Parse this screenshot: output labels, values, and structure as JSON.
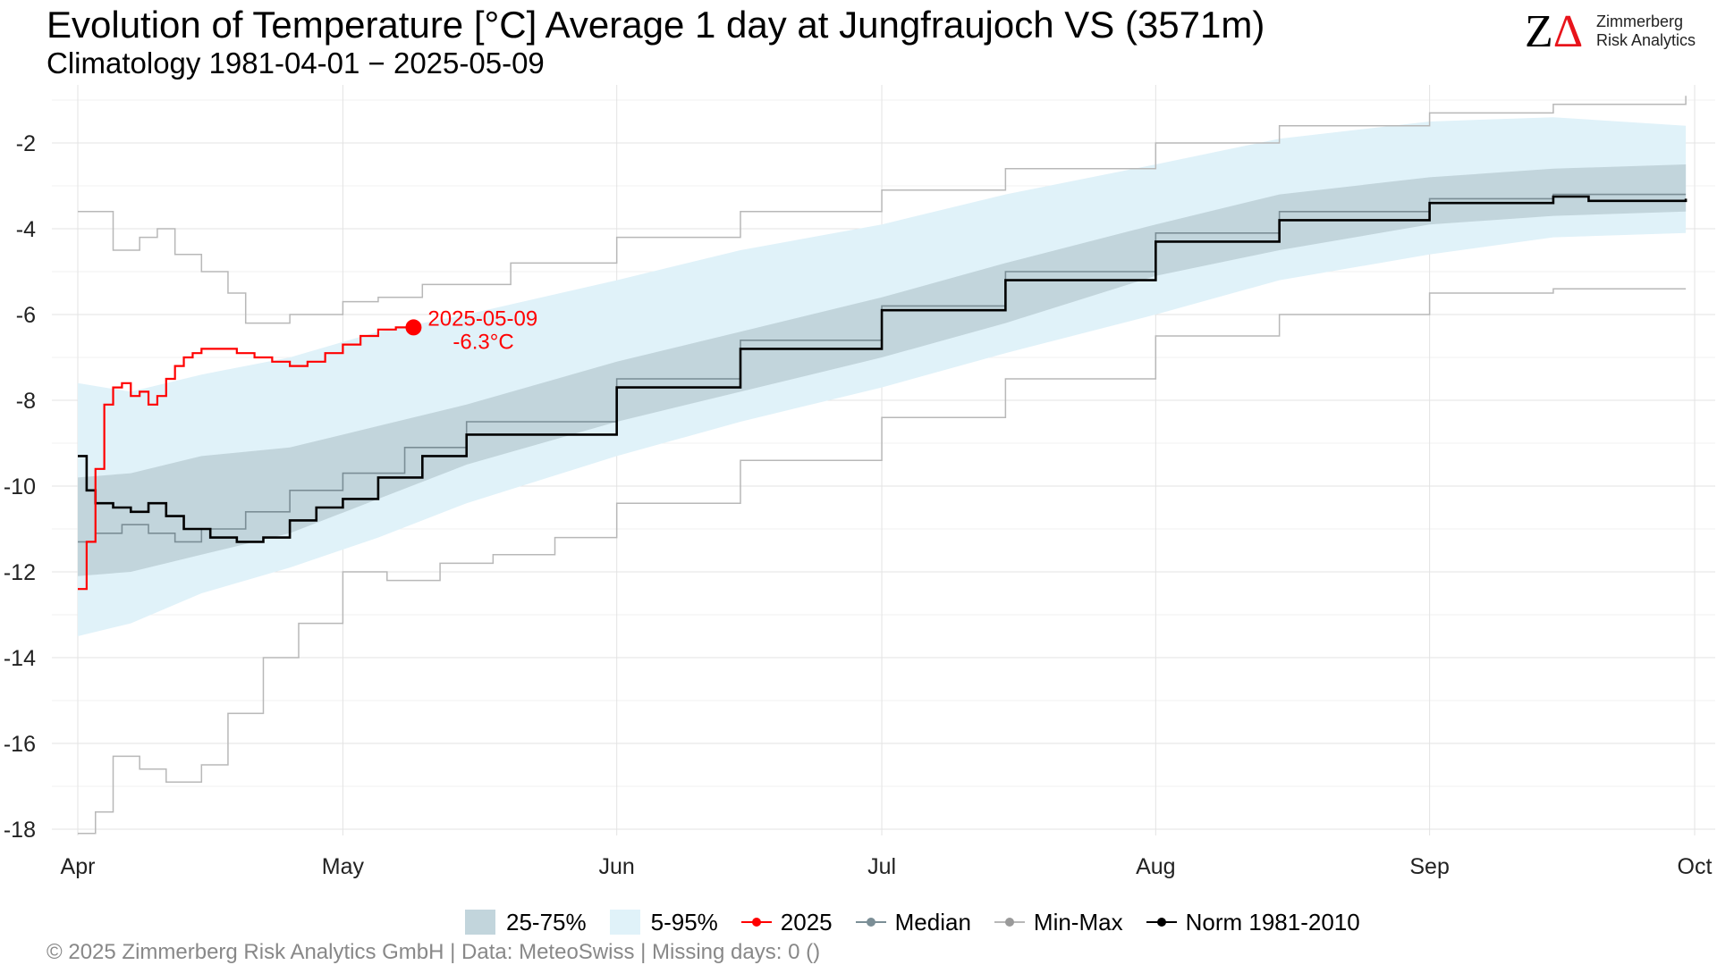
{
  "title": "Evolution of Temperature [°C] Average 1 day at Jungfraujoch  VS (3571m)",
  "subtitle": "Climatology 1981-04-01 − 2025-05-09",
  "logo": {
    "mark_z": "Z",
    "mark_delta": "Δ",
    "line1": "Zimmerberg",
    "line2": "Risk Analytics"
  },
  "footer": "©  2025 Zimmerberg Risk Analytics GmbH | Data: MeteoSwiss | Missing days: 0 ()",
  "legend": {
    "band_25_75": "25-75%",
    "band_5_95": "5-95%",
    "y2025": "2025",
    "median": "Median",
    "minmax": "Min-Max",
    "norm": "Norm 1981-2010"
  },
  "colors": {
    "band_25_75": "#c2d5dc",
    "band_5_95": "#e0f2f9",
    "y2025": "#ff0000",
    "median": "#7b8e96",
    "minmax": "#b8b8b8",
    "norm": "#000000",
    "grid": "#e3e3e3"
  },
  "chart_data": {
    "type": "line",
    "x_axis": {
      "type": "date",
      "range": [
        "2025-04-01",
        "2025-10-01"
      ],
      "tick_dates": [
        "2025-04-01",
        "2025-05-01",
        "2025-06-01",
        "2025-07-01",
        "2025-08-01",
        "2025-09-01",
        "2025-10-01"
      ],
      "tick_labels": [
        "Apr",
        "May",
        "Jun",
        "Jul",
        "Aug",
        "Sep",
        "Oct"
      ]
    },
    "y_axis": {
      "range": [
        -18.1,
        -1.0
      ],
      "ticks": [
        -2,
        -4,
        -6,
        -8,
        -10,
        -12,
        -14,
        -16,
        -18
      ],
      "tick_labels": [
        "-2",
        "-4",
        "-6",
        "-8",
        "-10",
        "-12",
        "-14",
        "-16",
        "-18"
      ]
    },
    "grid": true,
    "legend_position": "bottom",
    "series": [
      {
        "name": "5-95%",
        "kind": "band",
        "x": [
          "2025-04-01",
          "2025-04-07",
          "2025-04-15",
          "2025-04-25",
          "2025-05-05",
          "2025-05-15",
          "2025-06-01",
          "2025-06-15",
          "2025-07-01",
          "2025-07-15",
          "2025-08-01",
          "2025-08-15",
          "2025-09-01",
          "2025-09-15",
          "2025-09-30"
        ],
        "low": [
          -13.5,
          -13.2,
          -12.5,
          -11.9,
          -11.2,
          -10.4,
          -9.3,
          -8.5,
          -7.7,
          -6.9,
          -6.0,
          -5.2,
          -4.6,
          -4.2,
          -4.1
        ],
        "high": [
          -7.6,
          -7.8,
          -7.4,
          -7.0,
          -6.4,
          -6.0,
          -5.2,
          -4.5,
          -3.9,
          -3.2,
          -2.5,
          -1.9,
          -1.5,
          -1.4,
          -1.6
        ]
      },
      {
        "name": "25-75%",
        "kind": "band",
        "x": [
          "2025-04-01",
          "2025-04-07",
          "2025-04-15",
          "2025-04-25",
          "2025-05-05",
          "2025-05-15",
          "2025-06-01",
          "2025-06-15",
          "2025-07-01",
          "2025-07-15",
          "2025-08-01",
          "2025-08-15",
          "2025-09-01",
          "2025-09-15",
          "2025-09-30"
        ],
        "low": [
          -12.1,
          -12.0,
          -11.6,
          -11.1,
          -10.3,
          -9.5,
          -8.5,
          -7.8,
          -7.0,
          -6.2,
          -5.1,
          -4.5,
          -3.9,
          -3.7,
          -3.6
        ],
        "high": [
          -9.8,
          -9.7,
          -9.3,
          -9.1,
          -8.6,
          -8.1,
          -7.1,
          -6.4,
          -5.6,
          -4.8,
          -3.9,
          -3.2,
          -2.8,
          -2.6,
          -2.5
        ]
      },
      {
        "name": "Min-Max",
        "kind": "line",
        "part": "max",
        "x": [
          "2025-04-01",
          "2025-04-03",
          "2025-04-05",
          "2025-04-08",
          "2025-04-10",
          "2025-04-12",
          "2025-04-15",
          "2025-04-18",
          "2025-04-20",
          "2025-04-25",
          "2025-05-01",
          "2025-05-05",
          "2025-05-10",
          "2025-05-20",
          "2025-06-01",
          "2025-06-15",
          "2025-07-01",
          "2025-07-15",
          "2025-08-01",
          "2025-08-15",
          "2025-09-01",
          "2025-09-15",
          "2025-09-30"
        ],
        "y": [
          -3.6,
          -3.6,
          -4.5,
          -4.2,
          -4.0,
          -4.6,
          -5.0,
          -5.5,
          -6.2,
          -6.0,
          -5.7,
          -5.6,
          -5.3,
          -4.8,
          -4.2,
          -3.6,
          -3.1,
          -2.6,
          -2.0,
          -1.6,
          -1.3,
          -1.1,
          -0.9
        ]
      },
      {
        "name": "Min-Max",
        "kind": "line",
        "part": "min",
        "x": [
          "2025-04-01",
          "2025-04-03",
          "2025-04-05",
          "2025-04-08",
          "2025-04-11",
          "2025-04-15",
          "2025-04-18",
          "2025-04-22",
          "2025-04-26",
          "2025-05-01",
          "2025-05-06",
          "2025-05-12",
          "2025-05-18",
          "2025-05-25",
          "2025-06-01",
          "2025-06-15",
          "2025-07-01",
          "2025-07-15",
          "2025-08-01",
          "2025-08-15",
          "2025-09-01",
          "2025-09-15",
          "2025-09-30"
        ],
        "y": [
          -18.1,
          -17.6,
          -16.3,
          -16.6,
          -16.9,
          -16.5,
          -15.3,
          -14.0,
          -13.2,
          -12.0,
          -12.2,
          -11.8,
          -11.6,
          -11.2,
          -10.4,
          -9.4,
          -8.4,
          -7.5,
          -6.5,
          -6.0,
          -5.5,
          -5.4,
          -5.4
        ]
      },
      {
        "name": "Median",
        "kind": "line",
        "x": [
          "2025-04-01",
          "2025-04-03",
          "2025-04-06",
          "2025-04-09",
          "2025-04-12",
          "2025-04-15",
          "2025-04-20",
          "2025-04-25",
          "2025-05-01",
          "2025-05-08",
          "2025-05-15",
          "2025-06-01",
          "2025-06-15",
          "2025-07-01",
          "2025-07-15",
          "2025-08-01",
          "2025-08-15",
          "2025-09-01",
          "2025-09-15",
          "2025-09-30"
        ],
        "y": [
          -11.3,
          -11.1,
          -10.9,
          -11.1,
          -11.3,
          -11.0,
          -10.6,
          -10.1,
          -9.7,
          -9.1,
          -8.5,
          -7.5,
          -6.6,
          -5.8,
          -5.0,
          -4.1,
          -3.6,
          -3.3,
          -3.2,
          -3.2
        ]
      },
      {
        "name": "Norm 1981-2010",
        "kind": "line",
        "x": [
          "2025-04-01",
          "2025-04-02",
          "2025-04-03",
          "2025-04-05",
          "2025-04-07",
          "2025-04-09",
          "2025-04-11",
          "2025-04-13",
          "2025-04-16",
          "2025-04-19",
          "2025-04-22",
          "2025-04-25",
          "2025-04-28",
          "2025-05-01",
          "2025-05-05",
          "2025-05-10",
          "2025-05-15",
          "2025-06-01",
          "2025-06-15",
          "2025-07-01",
          "2025-07-15",
          "2025-08-01",
          "2025-08-15",
          "2025-09-01",
          "2025-09-15",
          "2025-09-19",
          "2025-09-30"
        ],
        "y": [
          -9.3,
          -10.1,
          -10.4,
          -10.5,
          -10.6,
          -10.4,
          -10.7,
          -11.0,
          -11.2,
          -11.3,
          -11.2,
          -10.8,
          -10.5,
          -10.3,
          -9.8,
          -9.3,
          -8.8,
          -7.7,
          -6.8,
          -5.9,
          -5.2,
          -4.3,
          -3.8,
          -3.4,
          -3.25,
          -3.35,
          -3.3
        ]
      },
      {
        "name": "2025",
        "kind": "line",
        "x": [
          "2025-04-01",
          "2025-04-02",
          "2025-04-03",
          "2025-04-04",
          "2025-04-05",
          "2025-04-06",
          "2025-04-07",
          "2025-04-08",
          "2025-04-09",
          "2025-04-10",
          "2025-04-11",
          "2025-04-12",
          "2025-04-13",
          "2025-04-14",
          "2025-04-15",
          "2025-04-17",
          "2025-04-19",
          "2025-04-21",
          "2025-04-23",
          "2025-04-25",
          "2025-04-27",
          "2025-04-29",
          "2025-05-01",
          "2025-05-03",
          "2025-05-05",
          "2025-05-07",
          "2025-05-09"
        ],
        "y": [
          -12.4,
          -11.3,
          -9.6,
          -8.1,
          -7.7,
          -7.6,
          -7.9,
          -7.8,
          -8.1,
          -7.9,
          -7.5,
          -7.2,
          -7.0,
          -6.9,
          -6.8,
          -6.8,
          -6.9,
          -7.0,
          -7.1,
          -7.2,
          -7.1,
          -6.9,
          -6.7,
          -6.5,
          -6.35,
          -6.3,
          -6.3
        ]
      }
    ],
    "annotations": [
      {
        "date": "2025-05-09",
        "value": -6.3,
        "label_date": "2025-05-09",
        "label_value": "-6.3°C"
      }
    ]
  }
}
